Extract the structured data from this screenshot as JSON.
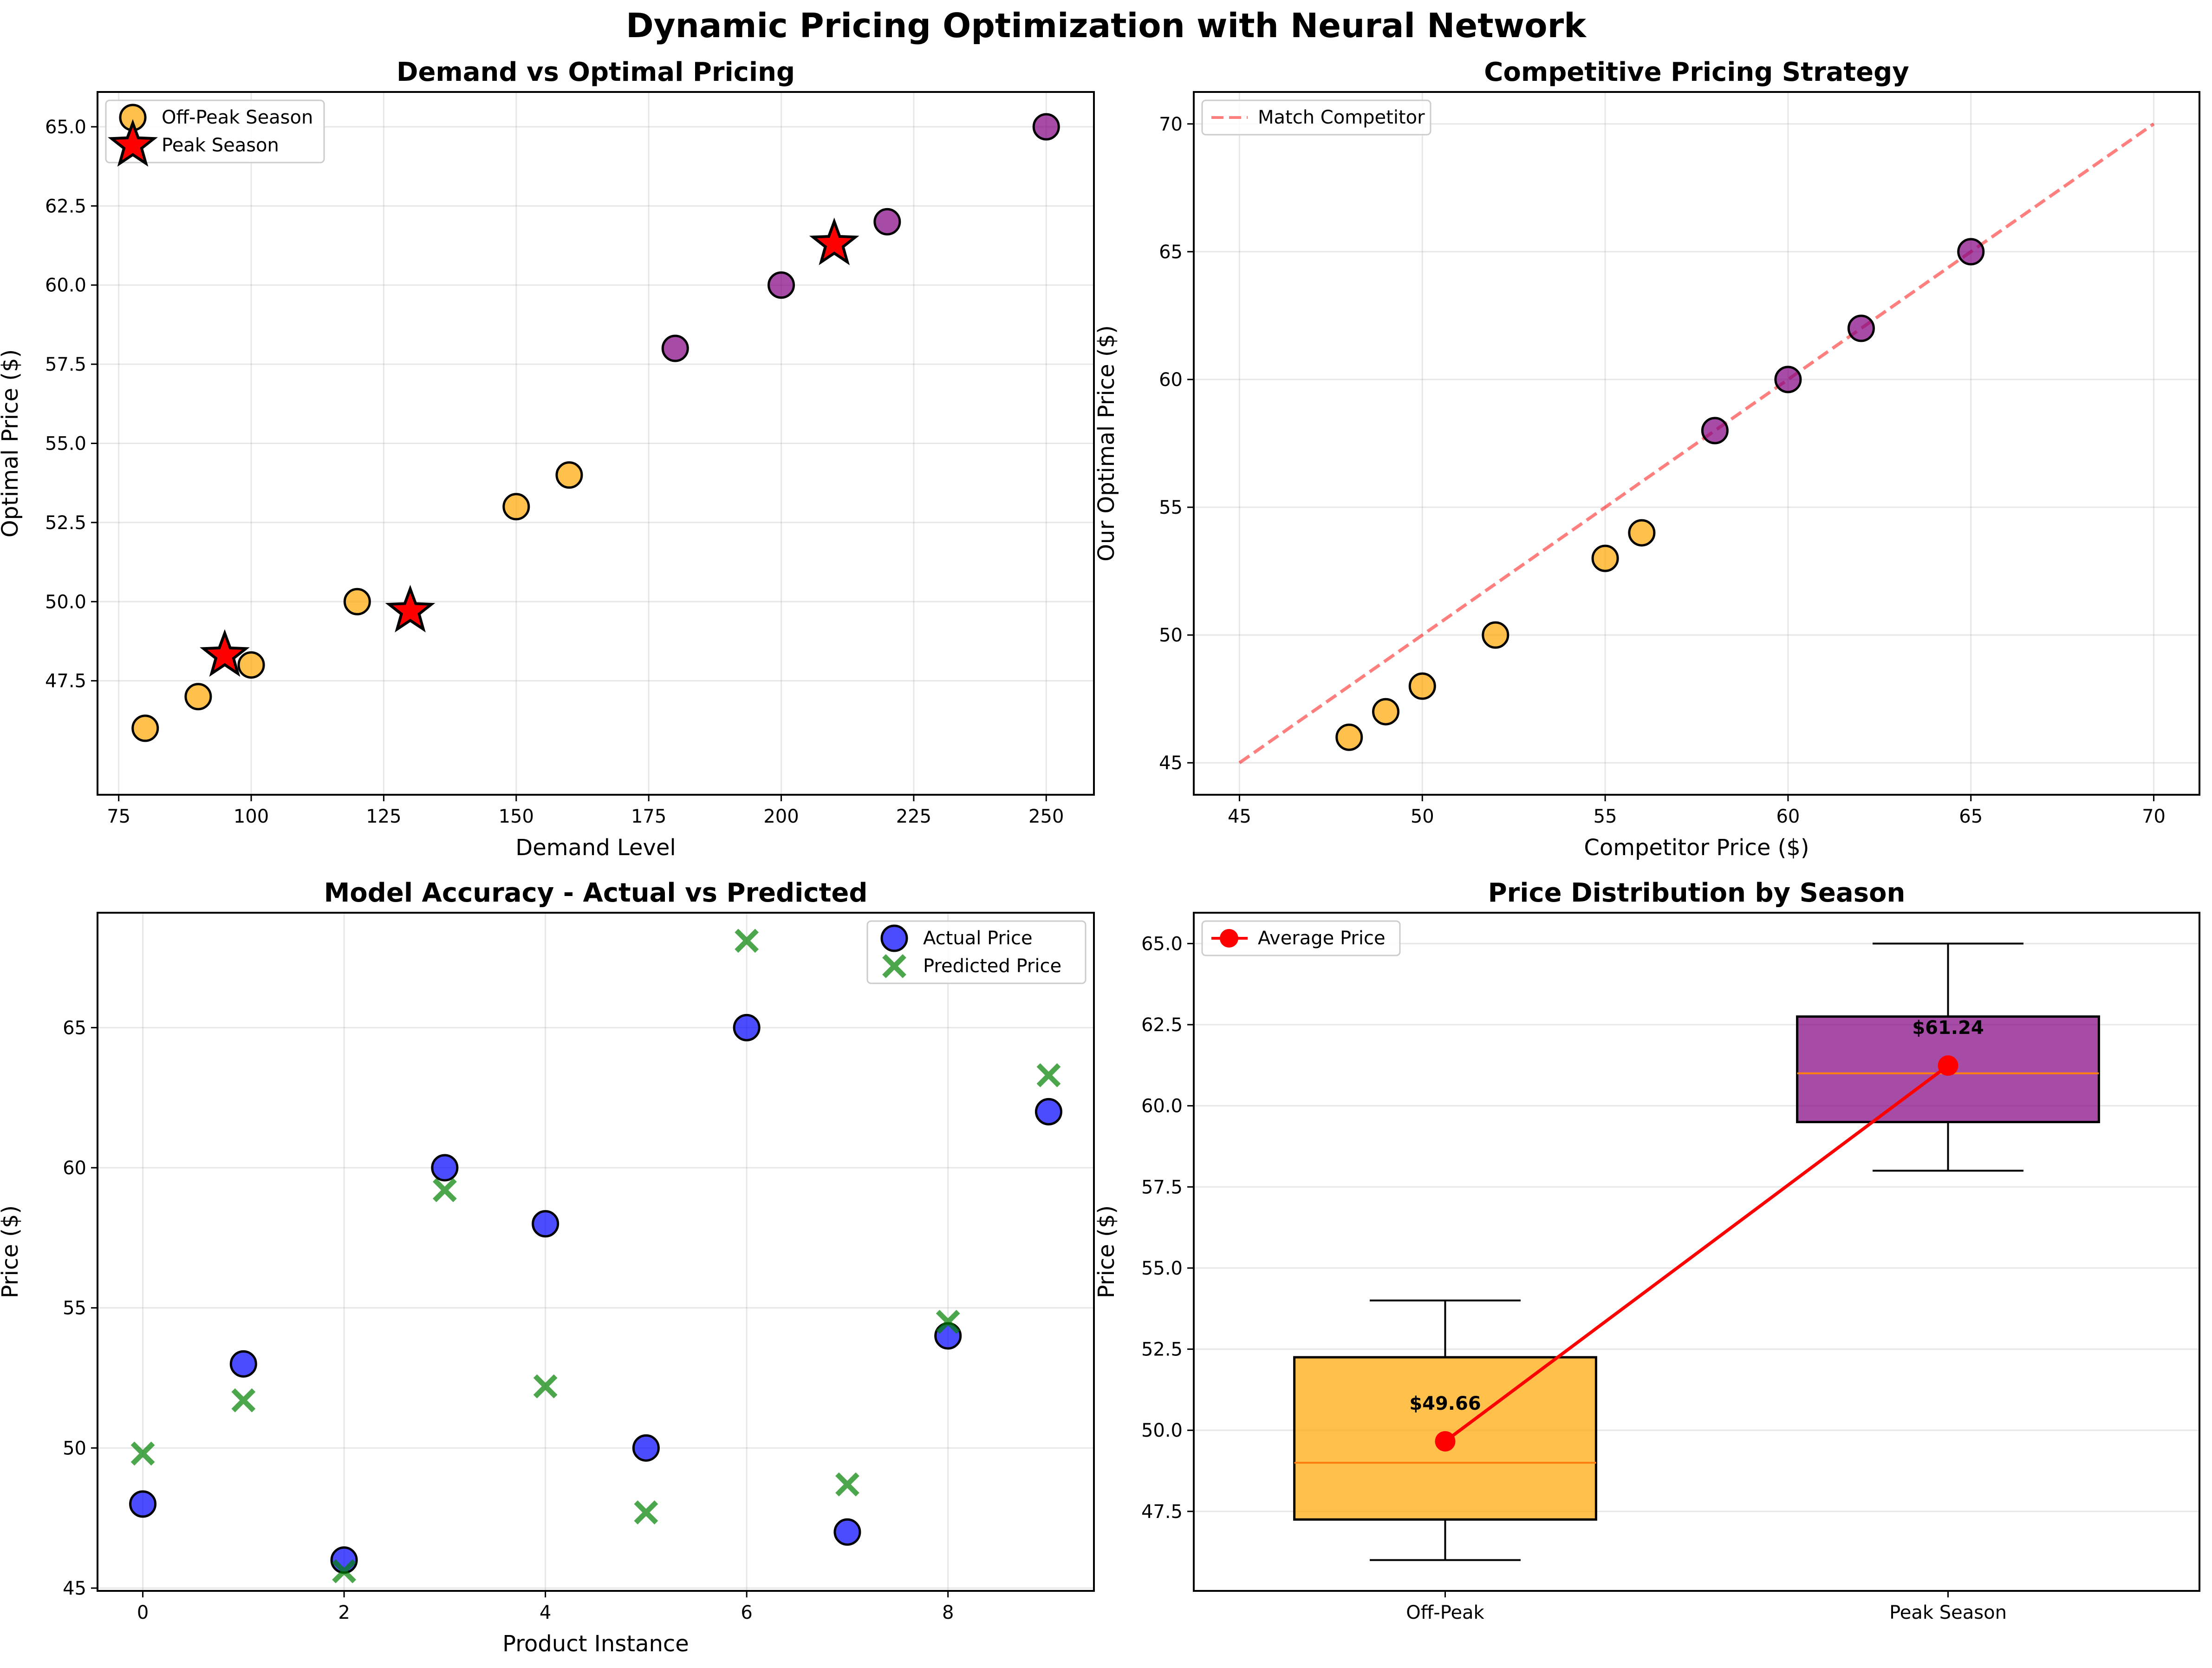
{
  "title": "Dynamic Pricing Optimization with Neural Network",
  "chart_data": [
    {
      "type": "scatter",
      "title": "Demand vs Optimal Pricing",
      "xlabel": "Demand Level",
      "ylabel": "Optimal Price ($)",
      "xlim": [
        71,
        259
      ],
      "ylim": [
        43.9,
        66.1
      ],
      "xticks": [
        "75",
        "100",
        "125",
        "150",
        "175",
        "200",
        "225",
        "250"
      ],
      "yticks": [
        "47.5",
        "50.0",
        "52.5",
        "55.0",
        "57.5",
        "60.0",
        "62.5",
        "65.0"
      ],
      "legend": "upper-left",
      "grid": true,
      "series": [
        {
          "name": "Off-Peak Season",
          "marker": "circle",
          "color": "#FFA500",
          "x": [
            80,
            90,
            100,
            120,
            150,
            160
          ],
          "y": [
            46,
            47,
            48,
            50,
            53,
            54
          ]
        },
        {
          "name": "",
          "marker": "circle",
          "color": "#800080",
          "x": [
            180,
            200,
            220,
            250
          ],
          "y": [
            58,
            60,
            62,
            65
          ]
        },
        {
          "name": "Peak Season",
          "marker": "star",
          "color": "#FF0000",
          "x": [
            95,
            130,
            210
          ],
          "y": [
            48.3,
            49.7,
            61.3
          ]
        }
      ]
    },
    {
      "type": "scatter",
      "title": "Competitive Pricing Strategy",
      "xlabel": "Competitor Price ($)",
      "ylabel": "Our Optimal Price ($)",
      "xlim": [
        43.75,
        71.25
      ],
      "ylim": [
        43.75,
        71.25
      ],
      "xticks": [
        "45",
        "50",
        "55",
        "60",
        "65",
        "70"
      ],
      "yticks": [
        "45",
        "50",
        "55",
        "60",
        "65",
        "70"
      ],
      "legend": "upper-left",
      "grid": true,
      "reference_line": {
        "name": "Match Competitor",
        "x": [
          45,
          70
        ],
        "y": [
          45,
          70
        ],
        "color": "#FF0000"
      },
      "series": [
        {
          "name": "",
          "marker": "circle",
          "color": "#FFA500",
          "x": [
            48,
            49,
            50,
            52,
            55,
            56
          ],
          "y": [
            46,
            47,
            48,
            50,
            53,
            54
          ]
        },
        {
          "name": "",
          "marker": "circle",
          "color": "#800080",
          "x": [
            58,
            60,
            62,
            65
          ],
          "y": [
            58,
            60,
            62,
            65
          ]
        }
      ]
    },
    {
      "type": "scatter",
      "title": "Model Accuracy - Actual vs Predicted",
      "xlabel": "Product Instance",
      "ylabel": "Price ($)",
      "xlim": [
        -0.45,
        9.45
      ],
      "ylim": [
        44.9,
        69.1
      ],
      "xticks": [
        "0",
        "2",
        "4",
        "6",
        "8"
      ],
      "yticks": [
        "45",
        "50",
        "55",
        "60",
        "65"
      ],
      "legend": "upper-right",
      "grid": true,
      "categories": [
        0,
        1,
        2,
        3,
        4,
        5,
        6,
        7,
        8,
        9
      ],
      "series": [
        {
          "name": "Actual Price",
          "marker": "circle",
          "color": "#0000FF",
          "values": [
            48,
            53,
            46,
            60,
            58,
            50,
            65,
            47,
            54,
            62
          ]
        },
        {
          "name": "Predicted Price",
          "marker": "x",
          "color": "#008000",
          "values": [
            49.8,
            51.7,
            45.6,
            59.2,
            52.2,
            47.7,
            68.1,
            48.7,
            54.5,
            63.3
          ]
        }
      ]
    },
    {
      "type": "box",
      "title": "Price Distribution by Season",
      "xlabel": "",
      "ylabel": "Price ($)",
      "ylim": [
        45.05,
        65.95
      ],
      "yticks": [
        "47.5",
        "50.0",
        "52.5",
        "55.0",
        "57.5",
        "60.0",
        "62.5",
        "65.0"
      ],
      "legend": "upper-left",
      "grid": true,
      "categories": [
        "Off-Peak",
        "Peak Season"
      ],
      "boxes": [
        {
          "category": "Off-Peak",
          "color": "#FFA500",
          "min": 46,
          "q1": 47.25,
          "median": 49,
          "q3": 52.25,
          "max": 54
        },
        {
          "category": "Peak Season",
          "color": "#800080",
          "min": 58,
          "q1": 59.5,
          "median": 61,
          "q3": 62.75,
          "max": 65
        }
      ],
      "average_series": {
        "name": "Average Price",
        "color": "#FF0000",
        "values": [
          49.66,
          61.24
        ]
      },
      "annotations": [
        "$49.66",
        "$61.24"
      ]
    }
  ]
}
